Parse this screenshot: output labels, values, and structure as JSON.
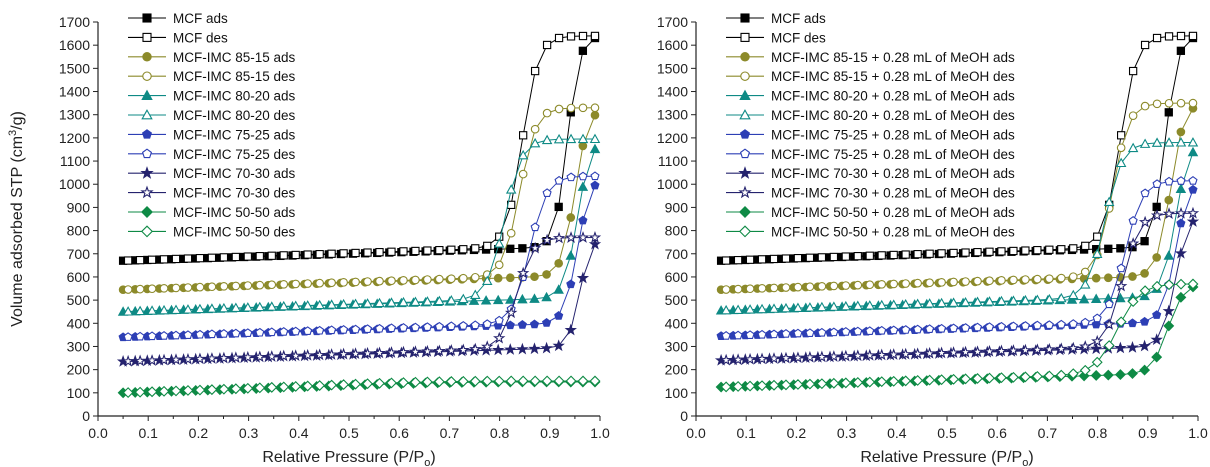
{
  "chart_data": [
    {
      "type": "scatter",
      "panel": "left",
      "xlabel": "Relative Pressure (P/P",
      "xlabel_sub": "o",
      "xlabel_close": ")",
      "ylabel": "Volume adsorbed STP (cm",
      "ylabel_sup": "3",
      "ylabel_close": "/g)",
      "xlim": [
        0.0,
        1.0
      ],
      "ylim": [
        0,
        1700
      ],
      "xticks": [
        "0.0",
        "0.1",
        "0.2",
        "0.3",
        "0.4",
        "0.5",
        "0.6",
        "0.7",
        "0.8",
        "0.9",
        "1.0"
      ],
      "yticks": [
        "0",
        "100",
        "200",
        "300",
        "400",
        "500",
        "600",
        "700",
        "800",
        "900",
        "1000",
        "1100",
        "1200",
        "1300",
        "1400",
        "1500",
        "1600",
        "1700"
      ],
      "legend_position": "top-left",
      "series": [
        {
          "name": "MCF ads",
          "color": "#000000",
          "marker": "square",
          "filled": true,
          "base": 670,
          "plateau": 1640,
          "pmid": 0.935,
          "pwid": 0.012,
          "kind": "ads",
          "start": 0.05,
          "end": 0.99,
          "n": 40
        },
        {
          "name": "MCF des",
          "color": "#000000",
          "marker": "square",
          "filled": false,
          "base": 670,
          "plateau": 1640,
          "pmid": 0.845,
          "pwid": 0.016,
          "kind": "des",
          "start": 0.06,
          "end": 0.99,
          "n": 40
        },
        {
          "name": "MCF-IMC 85-15 ads",
          "color": "#8c8a2a",
          "marker": "circle",
          "filled": true,
          "base": 545,
          "plateau": 1330,
          "pmid": 0.95,
          "pwid": 0.013,
          "kind": "ads",
          "start": 0.05,
          "end": 0.99,
          "n": 40
        },
        {
          "name": "MCF-IMC 85-15 des",
          "color": "#8c8a2a",
          "marker": "circle",
          "filled": false,
          "base": 545,
          "plateau": 1330,
          "pmid": 0.84,
          "pwid": 0.016,
          "kind": "des",
          "start": 0.06,
          "end": 0.99,
          "n": 40
        },
        {
          "name": "MCF-IMC 80-20 ads",
          "color": "#0e8a85",
          "marker": "triangle",
          "filled": true,
          "base": 450,
          "plateau": 1195,
          "pmid": 0.955,
          "pwid": 0.013,
          "kind": "ads",
          "start": 0.05,
          "end": 0.99,
          "n": 40
        },
        {
          "name": "MCF-IMC 80-20 des",
          "color": "#0e8a85",
          "marker": "triangle",
          "filled": false,
          "base": 450,
          "plateau": 1195,
          "pmid": 0.81,
          "pwid": 0.017,
          "kind": "des",
          "start": 0.06,
          "end": 0.99,
          "n": 40
        },
        {
          "name": "MCF-IMC 75-25 ads",
          "color": "#2d3fb5",
          "marker": "pentagon",
          "filled": true,
          "base": 340,
          "plateau": 1035,
          "pmid": 0.955,
          "pwid": 0.013,
          "kind": "ads",
          "start": 0.05,
          "end": 0.99,
          "n": 40
        },
        {
          "name": "MCF-IMC 75-25 des",
          "color": "#2d3fb5",
          "marker": "pentagon",
          "filled": false,
          "base": 340,
          "plateau": 1035,
          "pmid": 0.86,
          "pwid": 0.017,
          "kind": "des",
          "start": 0.06,
          "end": 0.99,
          "n": 40
        },
        {
          "name": "MCF-IMC 70-30 ads",
          "color": "#25236e",
          "marker": "star",
          "filled": true,
          "base": 235,
          "plateau": 770,
          "pmid": 0.96,
          "pwid": 0.011,
          "kind": "ads",
          "start": 0.05,
          "end": 0.99,
          "n": 40
        },
        {
          "name": "MCF-IMC 70-30 des",
          "color": "#25236e",
          "marker": "star",
          "filled": false,
          "base": 235,
          "plateau": 770,
          "pmid": 0.835,
          "pwid": 0.016,
          "kind": "des",
          "start": 0.06,
          "end": 0.99,
          "n": 40
        },
        {
          "name": "MCF-IMC 50-50 ads",
          "color": "#0e8a45",
          "marker": "diamond",
          "filled": true,
          "base": 100,
          "plateau": 145,
          "pmid": 0.7,
          "pwid": 0.12,
          "kind": "ads",
          "start": 0.05,
          "end": 0.99,
          "n": 40
        },
        {
          "name": "MCF-IMC 50-50 des",
          "color": "#0e8a45",
          "marker": "diamond",
          "filled": false,
          "base": 100,
          "plateau": 150,
          "pmid": 0.65,
          "pwid": 0.12,
          "kind": "des",
          "start": 0.06,
          "end": 0.99,
          "n": 40
        }
      ]
    },
    {
      "type": "scatter",
      "panel": "right",
      "xlabel": "Relative Pressure (P/P",
      "xlabel_sub": "o",
      "xlabel_close": ")",
      "xlim": [
        0.0,
        1.0
      ],
      "ylim": [
        0,
        1700
      ],
      "xticks": [
        "0.0",
        "0.1",
        "0.2",
        "0.3",
        "0.4",
        "0.5",
        "0.6",
        "0.7",
        "0.8",
        "0.9",
        "1.0"
      ],
      "yticks": [
        "0",
        "100",
        "200",
        "300",
        "400",
        "500",
        "600",
        "700",
        "800",
        "900",
        "1000",
        "1100",
        "1200",
        "1300",
        "1400",
        "1500",
        "1600",
        "1700"
      ],
      "legend_position": "top-left",
      "series": [
        {
          "name": "MCF ads",
          "color": "#000000",
          "marker": "square",
          "filled": true,
          "base": 670,
          "plateau": 1640,
          "pmid": 0.935,
          "pwid": 0.012,
          "kind": "ads",
          "start": 0.05,
          "end": 0.99,
          "n": 40
        },
        {
          "name": "MCF des",
          "color": "#000000",
          "marker": "square",
          "filled": false,
          "base": 670,
          "plateau": 1640,
          "pmid": 0.845,
          "pwid": 0.016,
          "kind": "des",
          "start": 0.06,
          "end": 0.99,
          "n": 40
        },
        {
          "name": "MCF-IMC 85-15 + 0.28 mL of MeOH ads",
          "color": "#8c8a2a",
          "marker": "circle",
          "filled": true,
          "base": 545,
          "plateau": 1350,
          "pmid": 0.945,
          "pwid": 0.013,
          "kind": "ads",
          "start": 0.05,
          "end": 0.99,
          "n": 40
        },
        {
          "name": "MCF-IMC 85-15 + 0.28 mL of MeOH des",
          "color": "#8c8a2a",
          "marker": "circle",
          "filled": false,
          "base": 545,
          "plateau": 1350,
          "pmid": 0.83,
          "pwid": 0.016,
          "kind": "des",
          "start": 0.06,
          "end": 0.99,
          "n": 40
        },
        {
          "name": "MCF-IMC 80-20 + 0.28 mL of MeOH ads",
          "color": "#0e8a85",
          "marker": "triangle",
          "filled": true,
          "base": 455,
          "plateau": 1180,
          "pmid": 0.955,
          "pwid": 0.013,
          "kind": "ads",
          "start": 0.05,
          "end": 0.99,
          "n": 40
        },
        {
          "name": "MCF-IMC 80-20 + 0.28 mL of MeOH des",
          "color": "#0e8a85",
          "marker": "triangle",
          "filled": false,
          "base": 455,
          "plateau": 1180,
          "pmid": 0.815,
          "pwid": 0.017,
          "kind": "des",
          "start": 0.06,
          "end": 0.99,
          "n": 40
        },
        {
          "name": "MCF-IMC 75-25 + 0.28 mL of MeOH ads",
          "color": "#2d3fb5",
          "marker": "pentagon",
          "filled": true,
          "base": 345,
          "plateau": 1015,
          "pmid": 0.955,
          "pwid": 0.013,
          "kind": "ads",
          "start": 0.05,
          "end": 0.99,
          "n": 40
        },
        {
          "name": "MCF-IMC 75-25 + 0.28 mL of MeOH des",
          "color": "#2d3fb5",
          "marker": "pentagon",
          "filled": false,
          "base": 345,
          "plateau": 1015,
          "pmid": 0.855,
          "pwid": 0.017,
          "kind": "des",
          "start": 0.06,
          "end": 0.99,
          "n": 40
        },
        {
          "name": "MCF-IMC 70-30 + 0.28 mL of MeOH ads",
          "color": "#25236e",
          "marker": "star",
          "filled": true,
          "base": 240,
          "plateau": 875,
          "pmid": 0.955,
          "pwid": 0.013,
          "kind": "ads",
          "start": 0.05,
          "end": 0.99,
          "n": 40
        },
        {
          "name": "MCF-IMC 70-30 + 0.28 mL of MeOH des",
          "color": "#25236e",
          "marker": "star",
          "filled": false,
          "base": 240,
          "plateau": 875,
          "pmid": 0.85,
          "pwid": 0.017,
          "kind": "des",
          "start": 0.06,
          "end": 0.99,
          "n": 40
        },
        {
          "name": "MCF-IMC 50-50 + 0.28 mL of MeOH ads",
          "color": "#0e8a45",
          "marker": "diamond",
          "filled": true,
          "base": 125,
          "plateau": 570,
          "pmid": 0.94,
          "pwid": 0.015,
          "kind": "ads",
          "start": 0.05,
          "end": 0.99,
          "n": 40
        },
        {
          "name": "MCF-IMC 50-50 + 0.28 mL of MeOH des",
          "color": "#0e8a45",
          "marker": "diamond",
          "filled": false,
          "base": 125,
          "plateau": 570,
          "pmid": 0.84,
          "pwid": 0.022,
          "kind": "des",
          "start": 0.06,
          "end": 0.99,
          "n": 40
        }
      ]
    }
  ]
}
